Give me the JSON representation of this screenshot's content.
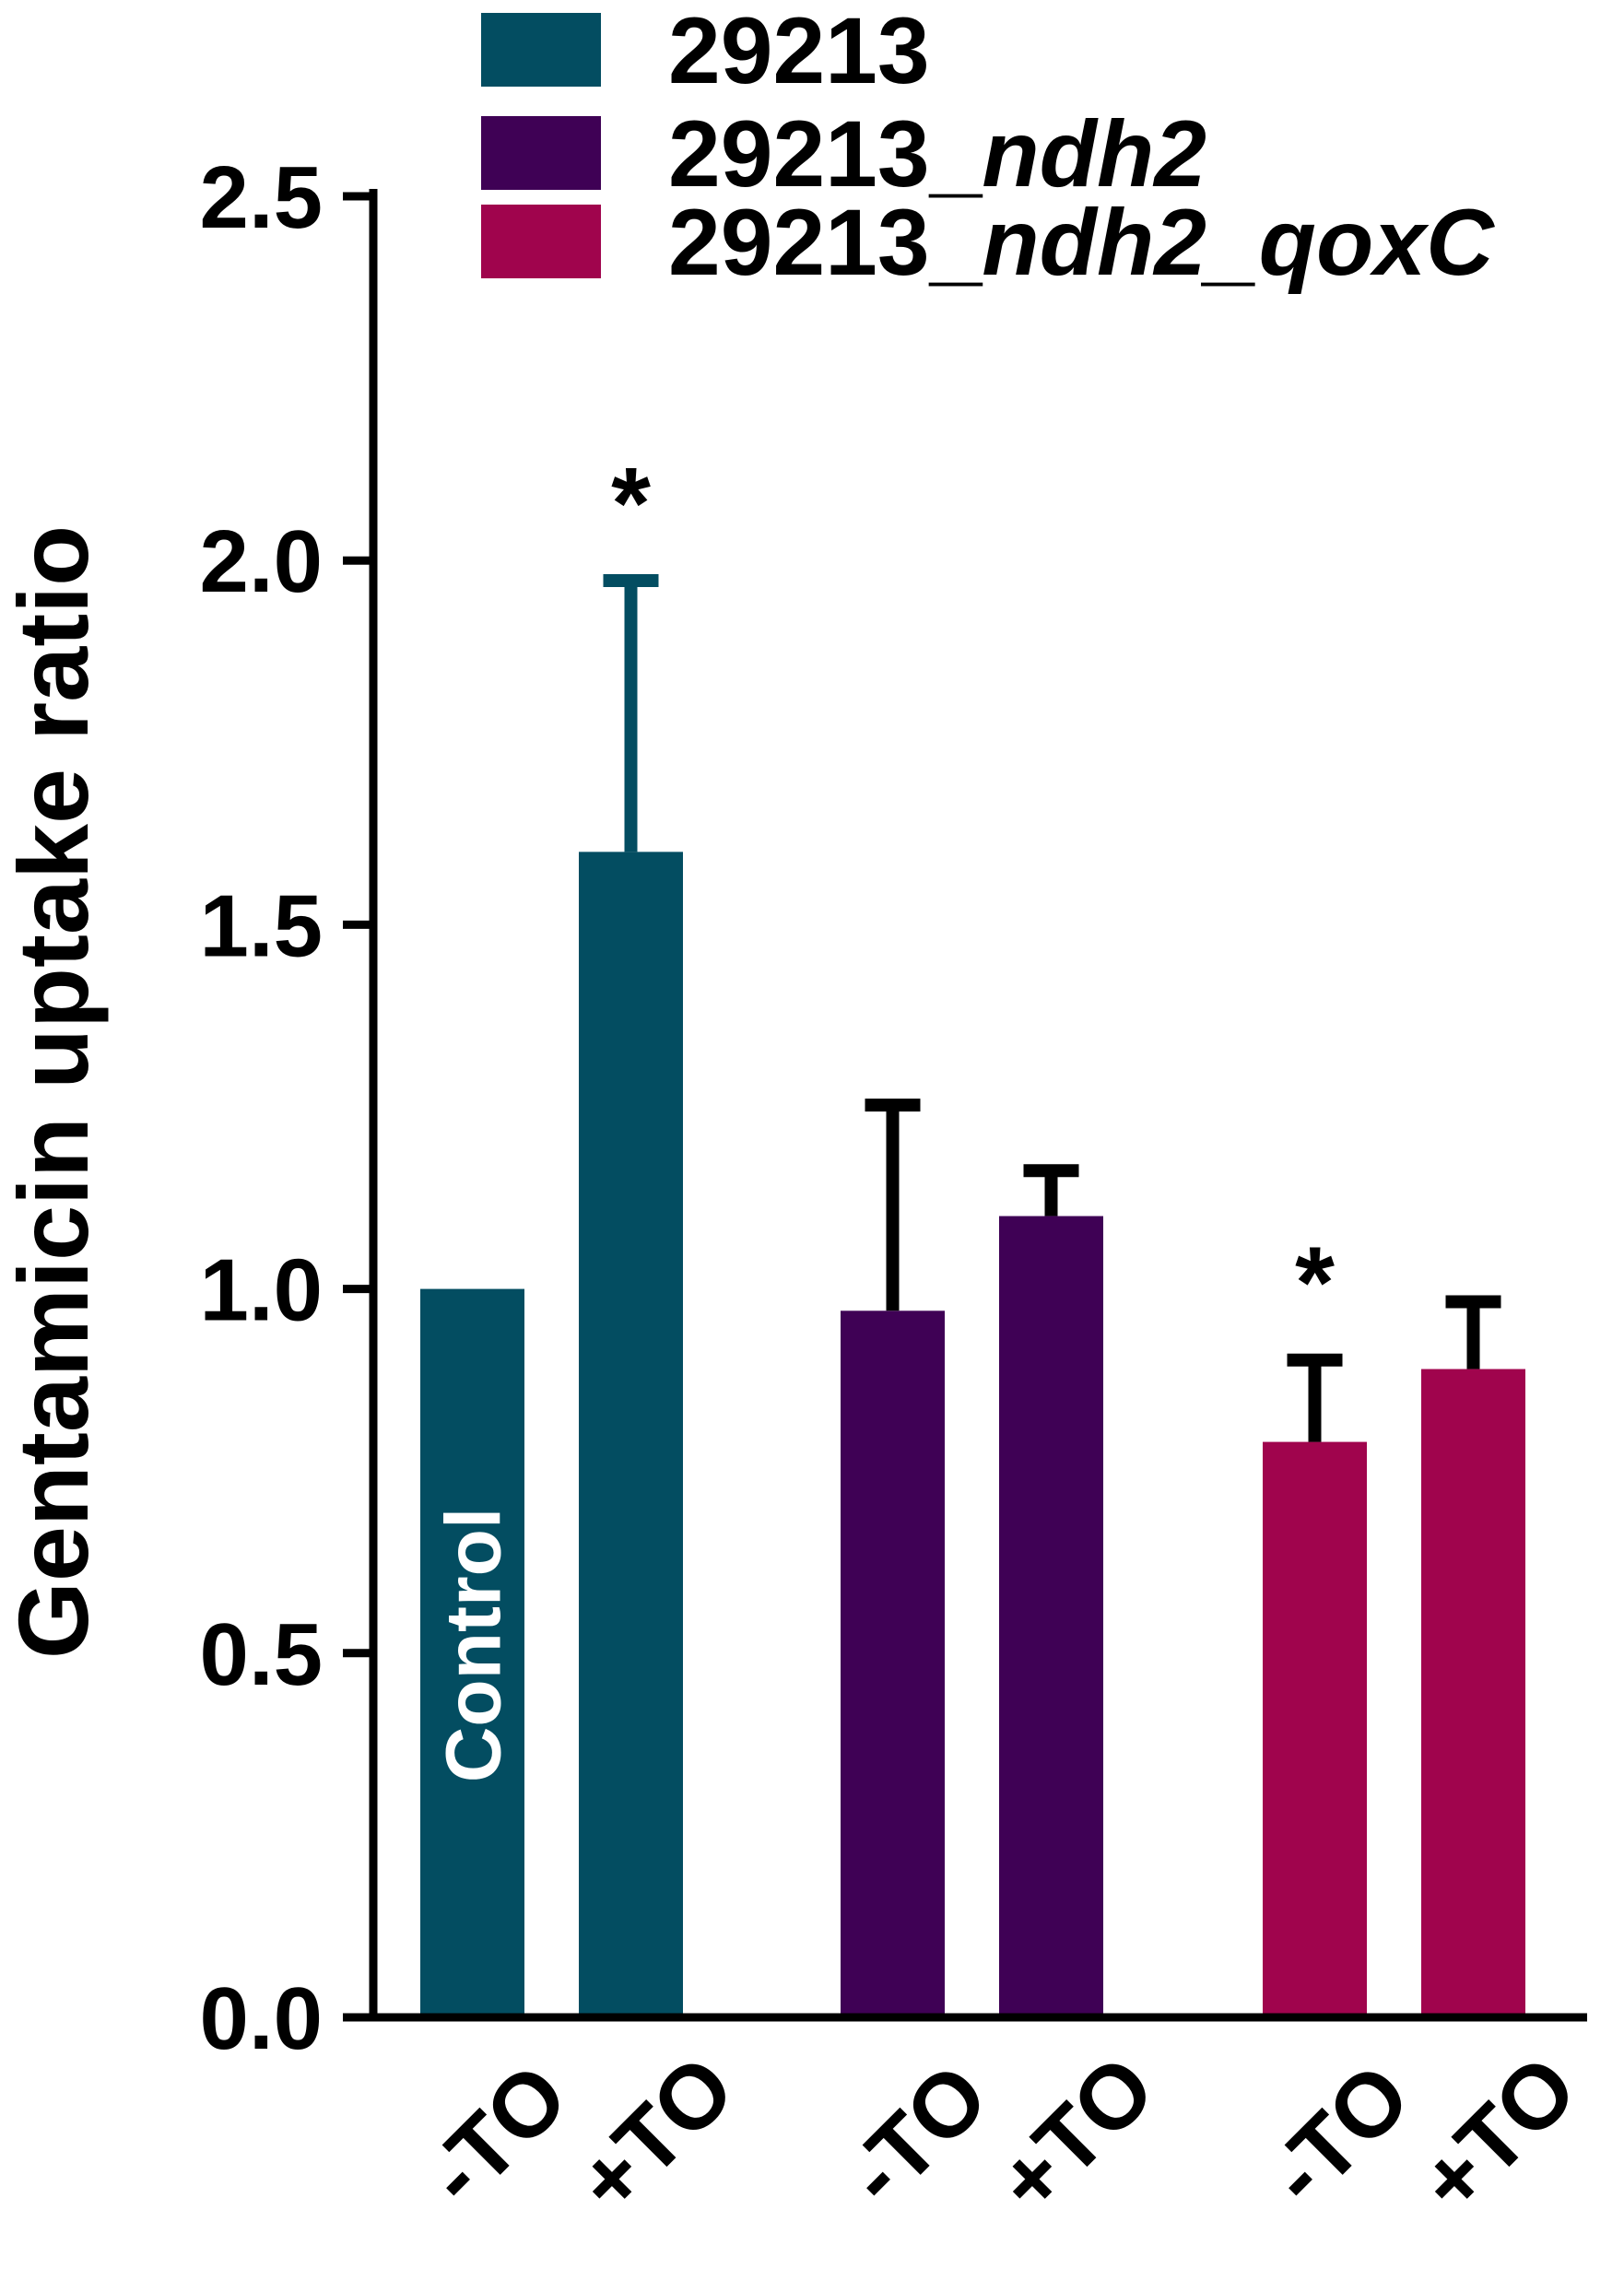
{
  "chart_data": {
    "type": "bar",
    "ylabel": "Gentamicin uptake ratio",
    "ylim": [
      0,
      2.5
    ],
    "yticks": [
      "0.0",
      "0.5",
      "1.0",
      "1.5",
      "2.0",
      "2.5"
    ],
    "grid": false,
    "legend_position": "top-right",
    "legend": [
      {
        "name": "29213",
        "prefix": "29213",
        "suffix": "",
        "color": "#034d61"
      },
      {
        "name": "29213_ndh2",
        "prefix": "29213_",
        "suffix": "ndh2",
        "color": "#3f0155"
      },
      {
        "name": "29213_ndh2_qoxC",
        "prefix": "29213_",
        "suffix": "ndh2_qoxC",
        "color": "#a0044d"
      }
    ],
    "bars": [
      {
        "category": "-TO",
        "group": "29213",
        "value": 1.0,
        "error": 0.0,
        "color": "#034d61",
        "label": "Control",
        "star": ""
      },
      {
        "category": "+TO",
        "group": "29213",
        "value": 1.6,
        "error": 0.38,
        "color": "#034d61",
        "label": "",
        "star": "*"
      },
      {
        "category": "-TO",
        "group": "29213_ndh2",
        "value": 0.97,
        "error": 0.29,
        "color": "#3f0155",
        "label": "",
        "star": ""
      },
      {
        "category": "+TO",
        "group": "29213_ndh2",
        "value": 1.1,
        "error": 0.07,
        "color": "#3f0155",
        "label": "",
        "star": ""
      },
      {
        "category": "-TO",
        "group": "29213_ndh2_qoxC",
        "value": 0.79,
        "error": 0.12,
        "color": "#a0044d",
        "label": "",
        "star": "*"
      },
      {
        "category": "+TO",
        "group": "29213_ndh2_qoxC",
        "value": 0.89,
        "error": 0.1,
        "color": "#a0044d",
        "label": "",
        "star": ""
      }
    ]
  }
}
